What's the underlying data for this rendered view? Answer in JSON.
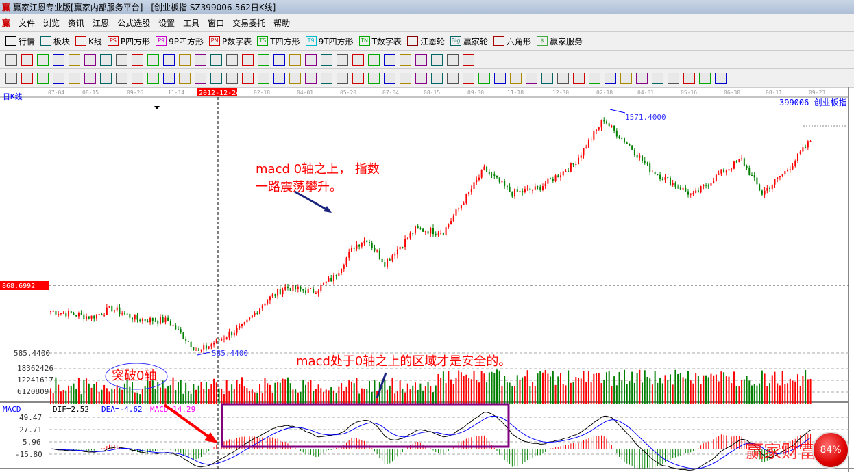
{
  "title": "赢家江恩专业版[赢家内部服务平台] - [创业板指  SZ399006-562日K线]",
  "logo": "赢",
  "menu": [
    "文件",
    "浏览",
    "资讯",
    "江恩",
    "公式选股",
    "设置",
    "工具",
    "窗口",
    "交易委托",
    "帮助"
  ],
  "toolbar1": [
    {
      "label": "行情",
      "icon": "grid-icon",
      "color": "#000"
    },
    {
      "label": "板块",
      "icon": "blocks-icon",
      "color": "#066"
    },
    {
      "label": "K线",
      "icon": "candles-icon",
      "color": "#c00"
    },
    {
      "label": "P四方形",
      "icon": "PS",
      "color": "#c00"
    },
    {
      "label": "9P四方形",
      "icon": "P9",
      "color": "#c0c"
    },
    {
      "label": "P数字表",
      "icon": "PN",
      "color": "#c00"
    },
    {
      "label": "T四方形",
      "icon": "TS",
      "color": "#0a0"
    },
    {
      "label": "9T四方形",
      "icon": "T9",
      "color": "#0bc"
    },
    {
      "label": "T数字表",
      "icon": "TN",
      "color": "#0a0"
    },
    {
      "label": "江恩轮",
      "icon": "wheel-icon",
      "color": "#800"
    },
    {
      "label": "赢家轮",
      "icon": "Big",
      "color": "#066"
    },
    {
      "label": "六角形",
      "icon": "hexagon-icon",
      "color": "#a00"
    },
    {
      "label": "赢家服务",
      "icon": "$",
      "color": "#4a4"
    }
  ],
  "toolbar2_count": 30,
  "toolbar3_count": 46,
  "chart": {
    "period_label": "日K线",
    "crosshair_date": "2012-12-24",
    "dates": [
      "07-04",
      "08-15",
      "09-26",
      "11-14",
      "2012-12-24",
      "02-18",
      "04-01",
      "05-20",
      "07-04",
      "08-15",
      "09-30",
      "11-18",
      "12-30",
      "02-18",
      "04-01",
      "05-16",
      "06-30",
      "08-11",
      "09-23"
    ],
    "symbol_label": "399006  创业板指",
    "crosshair_price": "868.6992",
    "low_label": "585.4400",
    "low_axis": "585.4400",
    "high_label": "1571.4000",
    "volume_ticks": [
      "18362426",
      "12241617",
      "6120809"
    ],
    "macd_title": "MACD",
    "dif": "DIF=2.52",
    "dea": "DEA=-4.62",
    "macd": "MACD=14.29",
    "macd_ticks": [
      "49.47",
      "27.71",
      "5.96",
      "-15.80"
    ],
    "colors": {
      "up": "#ff0000",
      "down": "#008000",
      "dif": "#000000",
      "dea": "#0000ff",
      "macd_label": "#ff00ff",
      "box": "#800080"
    }
  },
  "chart_data": {
    "type": "candlestick",
    "price_path": [
      [
        0,
        760
      ],
      [
        16,
        735
      ],
      [
        24,
        770
      ],
      [
        34,
        725
      ],
      [
        46,
        720
      ],
      [
        58,
        590
      ],
      [
        66,
        640
      ],
      [
        76,
        700
      ],
      [
        84,
        800
      ],
      [
        92,
        860
      ],
      [
        103,
        840
      ],
      [
        111,
        900
      ],
      [
        119,
        1030
      ],
      [
        124,
        1060
      ],
      [
        131,
        960
      ],
      [
        143,
        1100
      ],
      [
        154,
        1090
      ],
      [
        170,
        1350
      ],
      [
        181,
        1250
      ],
      [
        191,
        1270
      ],
      [
        205,
        1370
      ],
      [
        217,
        1560
      ],
      [
        220,
        1520
      ],
      [
        227,
        1450
      ],
      [
        235,
        1350
      ],
      [
        252,
        1240
      ],
      [
        262,
        1330
      ],
      [
        271,
        1390
      ],
      [
        279,
        1250
      ],
      [
        289,
        1350
      ],
      [
        298,
        1470
      ]
    ],
    "ylim": [
      585.44,
      1571.4
    ]
  },
  "annotations": {
    "note1_line1": "macd 0轴之上， 指数",
    "note1_line2": "一路震荡攀升。",
    "note2": "macd处于0轴之上的区域才是安全的。",
    "note3": "突破0轴",
    "watermark": "赢家财富",
    "badge": "84%"
  }
}
